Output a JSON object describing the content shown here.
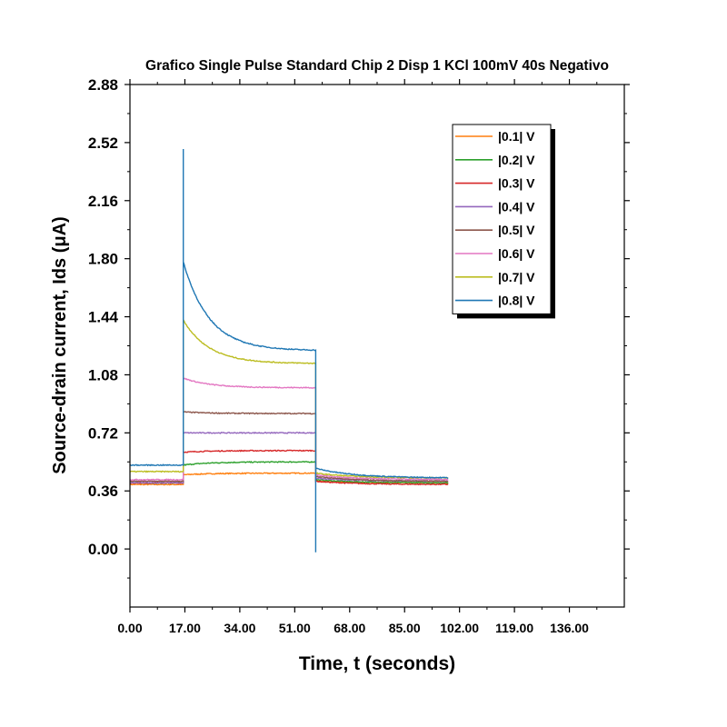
{
  "chart_data": {
    "type": "line",
    "title": "Grafico Single Pulse Standard Chip 2 Disp 1 KCl 100mV 40s Negativo",
    "xlabel": "Time, t (seconds)",
    "ylabel": "Source-drain current, Ids (μA)",
    "xlim": [
      0,
      153
    ],
    "ylim": [
      -0.36,
      2.88
    ],
    "xticks": [
      "0.00",
      "17.00",
      "34.00",
      "51.00",
      "68.00",
      "85.00",
      "102.00",
      "119.00",
      "136.00"
    ],
    "xtick_values": [
      0,
      17,
      34,
      51,
      68,
      85,
      102,
      119,
      136
    ],
    "yticks": [
      "0.00",
      "0.36",
      "0.72",
      "1.08",
      "1.44",
      "1.80",
      "2.16",
      "2.52",
      "2.88"
    ],
    "ytick_values": [
      0,
      0.36,
      0.72,
      1.08,
      1.44,
      1.8,
      2.16,
      2.52,
      2.88
    ],
    "legend_position": "top-right",
    "grid": false,
    "pulse_on_time": 16.5,
    "pulse_off_time": 57.5,
    "end_time": 98.5,
    "series": [
      {
        "name": "|0.1| V",
        "color": "#ff7f0e",
        "base": 0.4,
        "on_start": 0.46,
        "on_end": 0.47,
        "off_start": 0.42,
        "off_end": 0.41,
        "spike_up": 0.46,
        "spike_down": 0.42
      },
      {
        "name": "|0.2| V",
        "color": "#2ca02c",
        "base": 0.41,
        "on_start": 0.52,
        "on_end": 0.54,
        "off_start": 0.43,
        "off_end": 0.41,
        "spike_up": 0.52,
        "spike_down": 0.43
      },
      {
        "name": "|0.3| V",
        "color": "#d62728",
        "base": 0.41,
        "on_start": 0.6,
        "on_end": 0.61,
        "off_start": 0.42,
        "off_end": 0.4,
        "spike_up": 0.6,
        "spike_down": 0.42
      },
      {
        "name": "|0.4| V",
        "color": "#9467bd",
        "base": 0.41,
        "on_start": 0.72,
        "on_end": 0.72,
        "off_start": 0.44,
        "off_end": 0.42,
        "spike_up": 0.72,
        "spike_down": 0.44
      },
      {
        "name": "|0.5| V",
        "color": "#8c564b",
        "base": 0.42,
        "on_start": 0.85,
        "on_end": 0.84,
        "off_start": 0.45,
        "off_end": 0.42,
        "spike_up": 0.85,
        "spike_down": 0.45
      },
      {
        "name": "|0.6| V",
        "color": "#e377c2",
        "base": 0.43,
        "on_start": 1.06,
        "on_end": 1.0,
        "off_start": 0.46,
        "off_end": 0.43,
        "spike_up": 1.06,
        "spike_down": 0.46
      },
      {
        "name": "|0.7| V",
        "color": "#bcbd22",
        "base": 0.48,
        "on_start": 1.42,
        "on_end": 1.15,
        "off_start": 0.47,
        "off_end": 0.44,
        "spike_up": 1.42,
        "spike_down": 0.47
      },
      {
        "name": "|0.8| V",
        "color": "#1f77b4",
        "base": 0.52,
        "on_start": 1.78,
        "on_end": 1.23,
        "off_start": 0.5,
        "off_end": 0.44,
        "spike_up": 2.48,
        "spike_down": -0.02
      }
    ]
  }
}
